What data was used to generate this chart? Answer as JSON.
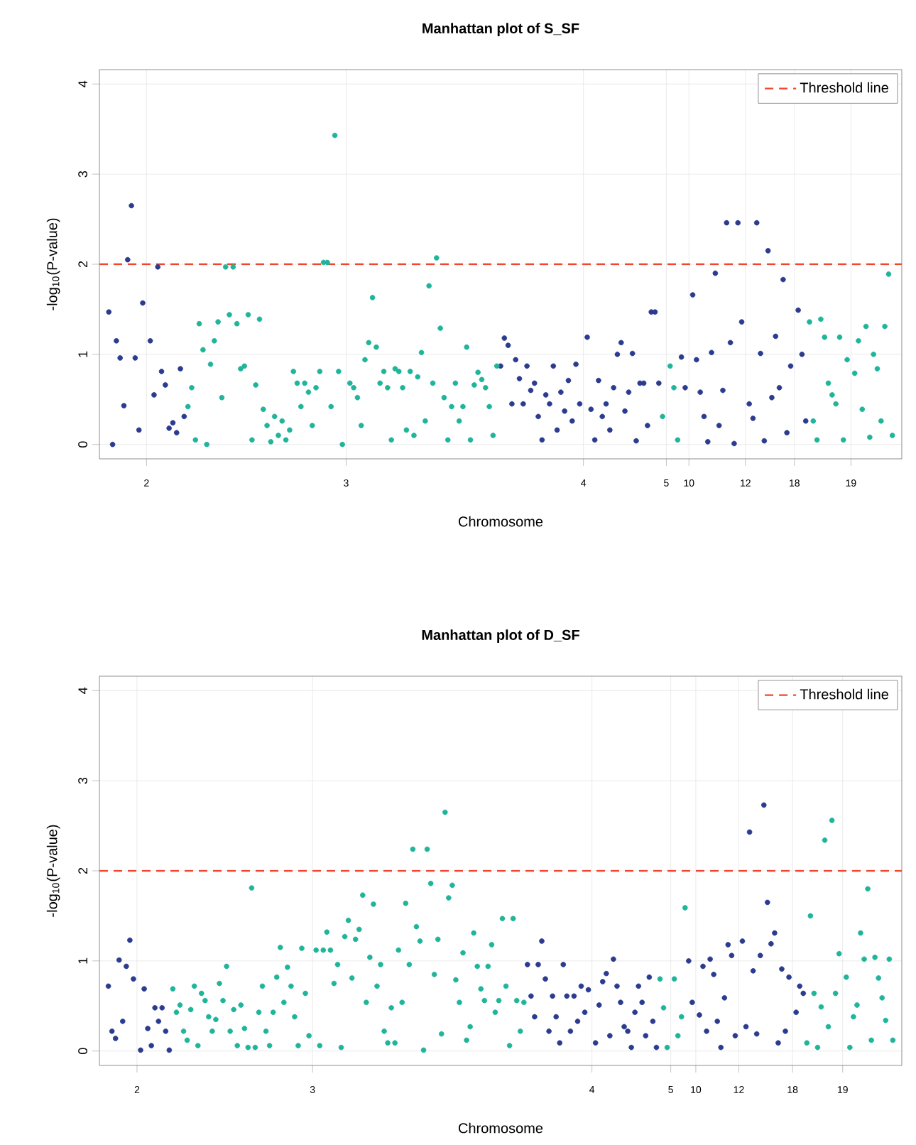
{
  "chart_data": [
    {
      "type": "scatter",
      "title": "Manhattan plot of S_SF",
      "xlabel": "Chromosome",
      "ylabel": "-log$_{10}$(P-value)",
      "ylim": [
        -0.16,
        4.16
      ],
      "yticks": [
        0,
        1,
        2,
        3,
        4
      ],
      "grid": true,
      "marker": "circle",
      "legend": "top right",
      "categories": [
        null,
        null,
        null,
        null,
        null,
        null,
        null,
        null,
        null,
        null,
        "2",
        null,
        null,
        null,
        null,
        null,
        null,
        null,
        null,
        null,
        null,
        null,
        null,
        null,
        null,
        null,
        null,
        null,
        null,
        null,
        null,
        null,
        null,
        null,
        null,
        null,
        null,
        null,
        null,
        null,
        null,
        null,
        null,
        null,
        null,
        null,
        null,
        null,
        null,
        null,
        null,
        null,
        null,
        null,
        null,
        null,
        null,
        null,
        null,
        null,
        null,
        null,
        null,
        "3",
        null,
        null,
        null,
        null,
        null,
        null,
        null,
        null,
        null,
        null,
        null,
        null,
        null,
        null,
        null,
        null,
        null,
        null,
        null,
        null,
        null,
        null,
        null,
        null,
        null,
        null,
        null,
        null,
        null,
        null,
        null,
        null,
        null,
        null,
        null,
        null,
        null,
        null,
        null,
        null,
        null,
        null,
        null,
        null,
        null,
        null,
        null,
        null,
        null,
        null,
        null,
        null,
        null,
        null,
        null,
        null,
        null,
        null,
        null,
        null,
        null,
        null,
        "4",
        null,
        null,
        null,
        null,
        null,
        null,
        null,
        null,
        null,
        null,
        null,
        null,
        null,
        null,
        null,
        null,
        null,
        null,
        null,
        null,
        null,
        "5",
        null,
        null,
        null,
        null,
        null,
        "10",
        null,
        null,
        null,
        null,
        null,
        null,
        null,
        null,
        null,
        null,
        null,
        null,
        null,
        null,
        "12",
        null,
        null,
        null,
        null,
        null,
        null,
        null,
        null,
        null,
        null,
        null,
        null,
        "18",
        null,
        null,
        null,
        null,
        null,
        null,
        null,
        null,
        null,
        null,
        null,
        null,
        null,
        null,
        "19",
        null,
        null,
        null,
        null,
        null,
        null,
        null,
        null,
        null,
        null,
        null
      ],
      "ref_lines": [
        {
          "axis": "y",
          "value": 2,
          "label": "Threshold line",
          "color": "#f2452d",
          "line_style": "dashed"
        }
      ],
      "series": [
        {
          "values": [
            1.47,
            0,
            1.15,
            0.96,
            0.43,
            2.05,
            2.65,
            0.96,
            0.16,
            1.57,
            null,
            1.15,
            0.55,
            1.97,
            0.81,
            0.66,
            0.18,
            0.24,
            0.13,
            0.84,
            0.31,
            0.42,
            0.63,
            0.05,
            1.34,
            1.05,
            0.0,
            0.89,
            1.15,
            1.36,
            0.52,
            1.97,
            1.44,
            1.97,
            1.34,
            0.84,
            0.87,
            1.44,
            0.05,
            0.66,
            1.39,
            0.39,
            0.21,
            0.03,
            0.31,
            0.1,
            0.26,
            0.05,
            0.16,
            0.81,
            0.68,
            0.42,
            0.68,
            0.58,
            0.21,
            0.63,
            0.81,
            2.02,
            2.02,
            0.42,
            3.43,
            0.81,
            0.0,
            null,
            0.68,
            0.63,
            0.52,
            0.21,
            0.94,
            1.13,
            1.63,
            1.08,
            0.68,
            0.81,
            0.63,
            0.05,
            0.84,
            0.81,
            0.63,
            0.16,
            0.81,
            0.1,
            0.75,
            1.02,
            0.26,
            1.76,
            0.68,
            2.07,
            1.29,
            0.52,
            0.05,
            0.42,
            0.68,
            0.26,
            0.42,
            1.08,
            0.05,
            0.66,
            0.8,
            0.72,
            0.63,
            0.42,
            0.1,
            0.87,
            0.87,
            1.18,
            1.1,
            0.45,
            0.94,
            0.73,
            0.45,
            0.87,
            0.6,
            0.68,
            0.31,
            0.05,
            0.55,
            0.45,
            0.87,
            0.16,
            0.58,
            0.37,
            0.71,
            0.26,
            0.89,
            0.45,
            null,
            1.19,
            0.39,
            0.05,
            0.71,
            0.31,
            0.45,
            0.16,
            0.63,
            1.0,
            1.13,
            0.37,
            0.58,
            1.01,
            0.04,
            0.68,
            0.68,
            0.21,
            1.47,
            1.47,
            0.68,
            0.31,
            null,
            0.87,
            0.63,
            0.05,
            0.97,
            0.63,
            null,
            1.66,
            0.94,
            0.58,
            0.31,
            0.03,
            1.02,
            1.9,
            0.21,
            0.6,
            2.46,
            1.13,
            0.01,
            2.46,
            1.36,
            null,
            0.45,
            0.29,
            2.46,
            1.01,
            0.04,
            2.15,
            0.52,
            1.2,
            0.63,
            1.83,
            0.13,
            0.87,
            null,
            1.49,
            1.0,
            0.26,
            1.36,
            0.26,
            0.05,
            1.39,
            1.19,
            0.68,
            0.55,
            0.45,
            1.19,
            0.05,
            0.94,
            null,
            0.79,
            1.15,
            0.39,
            1.31,
            0.08,
            1.0,
            0.84,
            0.26,
            1.31,
            1.89,
            0.1
          ],
          "colors": [
            "#2b3b8f",
            "#2b3b8f",
            "#2b3b8f",
            "#2b3b8f",
            "#2b3b8f",
            "#2b3b8f",
            "#2b3b8f",
            "#2b3b8f",
            "#2b3b8f",
            "#2b3b8f",
            null,
            "#2b3b8f",
            "#2b3b8f",
            "#2b3b8f",
            "#2b3b8f",
            "#2b3b8f",
            "#2b3b8f",
            "#2b3b8f",
            "#2b3b8f",
            "#2b3b8f",
            "#2b3b8f",
            "#1fb59a",
            "#1fb59a",
            "#1fb59a",
            "#1fb59a",
            "#1fb59a",
            "#1fb59a",
            "#1fb59a",
            "#1fb59a",
            "#1fb59a",
            "#1fb59a",
            "#1fb59a",
            "#1fb59a",
            "#1fb59a",
            "#1fb59a",
            "#1fb59a",
            "#1fb59a",
            "#1fb59a",
            "#1fb59a",
            "#1fb59a",
            "#1fb59a",
            "#1fb59a",
            "#1fb59a",
            "#1fb59a",
            "#1fb59a",
            "#1fb59a",
            "#1fb59a",
            "#1fb59a",
            "#1fb59a",
            "#1fb59a",
            "#1fb59a",
            "#1fb59a",
            "#1fb59a",
            "#1fb59a",
            "#1fb59a",
            "#1fb59a",
            "#1fb59a",
            "#1fb59a",
            "#1fb59a",
            "#1fb59a",
            "#1fb59a",
            "#1fb59a",
            "#1fb59a",
            null,
            "#1fb59a",
            "#1fb59a",
            "#1fb59a",
            "#1fb59a",
            "#1fb59a",
            "#1fb59a",
            "#1fb59a",
            "#1fb59a",
            "#1fb59a",
            "#1fb59a",
            "#1fb59a",
            "#1fb59a",
            "#1fb59a",
            "#1fb59a",
            "#1fb59a",
            "#1fb59a",
            "#1fb59a",
            "#1fb59a",
            "#1fb59a",
            "#1fb59a",
            "#1fb59a",
            "#1fb59a",
            "#1fb59a",
            "#1fb59a",
            "#1fb59a",
            "#1fb59a",
            "#1fb59a",
            "#1fb59a",
            "#1fb59a",
            "#1fb59a",
            "#1fb59a",
            "#1fb59a",
            "#1fb59a",
            "#1fb59a",
            "#1fb59a",
            "#1fb59a",
            "#1fb59a",
            "#1fb59a",
            "#1fb59a",
            "#1fb59a",
            "#2b3b8f",
            "#2b3b8f",
            "#2b3b8f",
            "#2b3b8f",
            "#2b3b8f",
            "#2b3b8f",
            "#2b3b8f",
            "#2b3b8f",
            "#2b3b8f",
            "#2b3b8f",
            "#2b3b8f",
            "#2b3b8f",
            "#2b3b8f",
            "#2b3b8f",
            "#2b3b8f",
            "#2b3b8f",
            "#2b3b8f",
            "#2b3b8f",
            "#2b3b8f",
            "#2b3b8f",
            "#2b3b8f",
            "#2b3b8f",
            null,
            "#2b3b8f",
            "#2b3b8f",
            "#2b3b8f",
            "#2b3b8f",
            "#2b3b8f",
            "#2b3b8f",
            "#2b3b8f",
            "#2b3b8f",
            "#2b3b8f",
            "#2b3b8f",
            "#2b3b8f",
            "#2b3b8f",
            "#2b3b8f",
            "#2b3b8f",
            "#2b3b8f",
            "#2b3b8f",
            "#2b3b8f",
            "#2b3b8f",
            "#2b3b8f",
            "#2b3b8f",
            "#1fb59a",
            null,
            "#1fb59a",
            "#1fb59a",
            "#1fb59a",
            "#2b3b8f",
            "#2b3b8f",
            null,
            "#2b3b8f",
            "#2b3b8f",
            "#2b3b8f",
            "#2b3b8f",
            "#2b3b8f",
            "#2b3b8f",
            "#2b3b8f",
            "#2b3b8f",
            "#2b3b8f",
            "#2b3b8f",
            "#2b3b8f",
            "#2b3b8f",
            "#2b3b8f",
            "#2b3b8f",
            null,
            "#2b3b8f",
            "#2b3b8f",
            "#2b3b8f",
            "#2b3b8f",
            "#2b3b8f",
            "#2b3b8f",
            "#2b3b8f",
            "#2b3b8f",
            "#2b3b8f",
            "#2b3b8f",
            "#2b3b8f",
            "#2b3b8f",
            null,
            "#2b3b8f",
            "#2b3b8f",
            "#2b3b8f",
            "#1fb59a",
            "#1fb59a",
            "#1fb59a",
            "#1fb59a",
            "#1fb59a",
            "#1fb59a",
            "#1fb59a",
            "#1fb59a",
            "#1fb59a",
            "#1fb59a",
            "#1fb59a",
            null,
            "#1fb59a",
            "#1fb59a",
            "#1fb59a",
            "#1fb59a",
            "#1fb59a",
            "#1fb59a",
            "#1fb59a",
            "#1fb59a",
            "#1fb59a",
            "#1fb59a",
            "#1fb59a"
          ]
        }
      ]
    },
    {
      "type": "scatter",
      "title": "Manhattan plot of D_SF",
      "xlabel": "Chromosome",
      "ylabel": "-log$_{10}$(P-value)",
      "ylim": [
        -0.16,
        4.16
      ],
      "yticks": [
        0,
        1,
        2,
        3,
        4
      ],
      "grid": true,
      "marker": "circle",
      "legend": "top right",
      "categories": [
        null,
        null,
        null,
        null,
        null,
        null,
        null,
        null,
        "2",
        null,
        null,
        null,
        null,
        null,
        null,
        null,
        null,
        null,
        null,
        null,
        null,
        null,
        null,
        null,
        null,
        null,
        null,
        null,
        null,
        null,
        null,
        null,
        null,
        null,
        null,
        null,
        null,
        null,
        null,
        null,
        null,
        null,
        null,
        null,
        null,
        null,
        null,
        null,
        null,
        null,
        null,
        null,
        null,
        null,
        null,
        null,
        null,
        "3",
        null,
        null,
        null,
        null,
        null,
        null,
        null,
        null,
        null,
        null,
        null,
        null,
        null,
        null,
        null,
        null,
        null,
        null,
        null,
        null,
        null,
        null,
        null,
        null,
        null,
        null,
        null,
        null,
        null,
        null,
        null,
        null,
        null,
        null,
        null,
        null,
        null,
        null,
        null,
        null,
        null,
        null,
        null,
        null,
        null,
        null,
        null,
        null,
        null,
        null,
        null,
        null,
        null,
        null,
        null,
        null,
        null,
        null,
        null,
        null,
        null,
        null,
        null,
        null,
        null,
        null,
        null,
        null,
        null,
        null,
        null,
        null,
        null,
        null,
        null,
        null,
        null,
        "4",
        null,
        null,
        null,
        null,
        null,
        null,
        null,
        null,
        null,
        null,
        null,
        null,
        null,
        null,
        null,
        null,
        null,
        null,
        null,
        null,
        null,
        "5",
        null,
        null,
        null,
        null,
        null,
        null,
        "10",
        null,
        null,
        null,
        null,
        null,
        null,
        null,
        null,
        null,
        null,
        null,
        "12",
        null,
        null,
        null,
        null,
        null,
        null,
        null,
        null,
        null,
        null,
        null,
        null,
        null,
        null,
        "18",
        null,
        null,
        null,
        null,
        null,
        null,
        null,
        null,
        null,
        null,
        null,
        null,
        null,
        "19",
        null,
        null,
        null,
        null,
        null,
        null,
        null,
        null,
        null,
        null,
        null,
        null,
        null,
        null
      ],
      "ref_lines": [
        {
          "axis": "y",
          "value": 2,
          "label": "Threshold line",
          "color": "#f2452d",
          "line_style": "dashed"
        }
      ],
      "series": [
        {
          "values": [
            0.72,
            0.22,
            0.14,
            1.01,
            0.33,
            0.94,
            1.23,
            0.8,
            null,
            0.01,
            0.69,
            0.25,
            0.06,
            0.48,
            0.33,
            0.48,
            0.22,
            0.01,
            0.69,
            0.43,
            0.51,
            0.22,
            0.12,
            0.46,
            0.72,
            0.06,
            0.64,
            0.56,
            0.38,
            0.22,
            0.35,
            0.75,
            0.56,
            0.94,
            0.22,
            0.46,
            0.06,
            0.51,
            0.25,
            0.04,
            1.81,
            0.04,
            0.43,
            0.72,
            0.22,
            0.06,
            0.43,
            0.82,
            1.15,
            0.54,
            0.93,
            0.72,
            0.38,
            0.06,
            1.14,
            0.64,
            0.17,
            null,
            1.12,
            0.06,
            1.12,
            1.32,
            1.12,
            0.75,
            0.96,
            0.04,
            1.27,
            1.45,
            0.81,
            1.24,
            1.35,
            1.73,
            0.54,
            1.04,
            1.63,
            0.72,
            0.96,
            0.22,
            0.09,
            0.48,
            0.09,
            1.12,
            0.54,
            1.64,
            0.96,
            2.24,
            1.38,
            1.22,
            0.01,
            2.24,
            1.86,
            0.85,
            1.24,
            0.19,
            2.65,
            1.7,
            1.84,
            0.79,
            0.54,
            1.09,
            0.12,
            0.27,
            1.31,
            0.94,
            0.69,
            0.56,
            0.94,
            1.18,
            0.43,
            0.56,
            1.47,
            0.72,
            0.06,
            1.47,
            0.56,
            0.22,
            0.54,
            0.96,
            0.61,
            0.38,
            0.96,
            1.22,
            0.8,
            0.22,
            0.61,
            0.38,
            0.09,
            0.96,
            0.61,
            0.22,
            0.61,
            0.33,
            0.72,
            0.43,
            0.68,
            null,
            0.09,
            0.51,
            0.77,
            0.86,
            0.17,
            1.02,
            0.72,
            0.54,
            0.27,
            0.22,
            0.04,
            0.43,
            0.72,
            0.54,
            0.17,
            0.82,
            0.33,
            0.04,
            0.8,
            0.48,
            0.04,
            null,
            0.8,
            0.17,
            0.38,
            1.59,
            1.0,
            0.54,
            null,
            0.4,
            0.94,
            0.22,
            1.02,
            0.85,
            0.33,
            0.04,
            0.59,
            1.18,
            1.06,
            0.17,
            null,
            1.22,
            0.27,
            2.43,
            0.89,
            0.19,
            1.06,
            2.73,
            1.65,
            1.19,
            1.31,
            0.09,
            0.91,
            0.22,
            0.82,
            null,
            0.43,
            0.72,
            0.64,
            0.09,
            1.5,
            0.64,
            0.04,
            0.49,
            2.34,
            0.27,
            2.56,
            0.64,
            1.08,
            null,
            0.82,
            0.04,
            0.38,
            0.51,
            1.31,
            1.02,
            1.8,
            0.12,
            1.04,
            0.81,
            0.59,
            0.34,
            1.02,
            0.12
          ],
          "colors": [
            "#2b3b8f",
            "#2b3b8f",
            "#2b3b8f",
            "#2b3b8f",
            "#2b3b8f",
            "#2b3b8f",
            "#2b3b8f",
            "#2b3b8f",
            null,
            "#2b3b8f",
            "#2b3b8f",
            "#2b3b8f",
            "#2b3b8f",
            "#2b3b8f",
            "#2b3b8f",
            "#2b3b8f",
            "#2b3b8f",
            "#2b3b8f",
            "#1fb59a",
            "#1fb59a",
            "#1fb59a",
            "#1fb59a",
            "#1fb59a",
            "#1fb59a",
            "#1fb59a",
            "#1fb59a",
            "#1fb59a",
            "#1fb59a",
            "#1fb59a",
            "#1fb59a",
            "#1fb59a",
            "#1fb59a",
            "#1fb59a",
            "#1fb59a",
            "#1fb59a",
            "#1fb59a",
            "#1fb59a",
            "#1fb59a",
            "#1fb59a",
            "#1fb59a",
            "#1fb59a",
            "#1fb59a",
            "#1fb59a",
            "#1fb59a",
            "#1fb59a",
            "#1fb59a",
            "#1fb59a",
            "#1fb59a",
            "#1fb59a",
            "#1fb59a",
            "#1fb59a",
            "#1fb59a",
            "#1fb59a",
            "#1fb59a",
            "#1fb59a",
            "#1fb59a",
            "#1fb59a",
            null,
            "#1fb59a",
            "#1fb59a",
            "#1fb59a",
            "#1fb59a",
            "#1fb59a",
            "#1fb59a",
            "#1fb59a",
            "#1fb59a",
            "#1fb59a",
            "#1fb59a",
            "#1fb59a",
            "#1fb59a",
            "#1fb59a",
            "#1fb59a",
            "#1fb59a",
            "#1fb59a",
            "#1fb59a",
            "#1fb59a",
            "#1fb59a",
            "#1fb59a",
            "#1fb59a",
            "#1fb59a",
            "#1fb59a",
            "#1fb59a",
            "#1fb59a",
            "#1fb59a",
            "#1fb59a",
            "#1fb59a",
            "#1fb59a",
            "#1fb59a",
            "#1fb59a",
            "#1fb59a",
            "#1fb59a",
            "#1fb59a",
            "#1fb59a",
            "#1fb59a",
            "#1fb59a",
            "#1fb59a",
            "#1fb59a",
            "#1fb59a",
            "#1fb59a",
            "#1fb59a",
            "#1fb59a",
            "#1fb59a",
            "#1fb59a",
            "#1fb59a",
            "#1fb59a",
            "#1fb59a",
            "#1fb59a",
            "#1fb59a",
            "#1fb59a",
            "#1fb59a",
            "#1fb59a",
            "#1fb59a",
            "#1fb59a",
            "#1fb59a",
            "#1fb59a",
            "#1fb59a",
            "#1fb59a",
            "#2b3b8f",
            "#2b3b8f",
            "#2b3b8f",
            "#2b3b8f",
            "#2b3b8f",
            "#2b3b8f",
            "#2b3b8f",
            "#2b3b8f",
            "#2b3b8f",
            "#2b3b8f",
            "#2b3b8f",
            "#2b3b8f",
            "#2b3b8f",
            "#2b3b8f",
            "#2b3b8f",
            "#2b3b8f",
            "#2b3b8f",
            "#2b3b8f",
            null,
            "#2b3b8f",
            "#2b3b8f",
            "#2b3b8f",
            "#2b3b8f",
            "#2b3b8f",
            "#2b3b8f",
            "#2b3b8f",
            "#2b3b8f",
            "#2b3b8f",
            "#2b3b8f",
            "#2b3b8f",
            "#2b3b8f",
            "#2b3b8f",
            "#2b3b8f",
            "#2b3b8f",
            "#2b3b8f",
            "#2b3b8f",
            "#2b3b8f",
            "#1fb59a",
            "#1fb59a",
            "#1fb59a",
            null,
            "#1fb59a",
            "#1fb59a",
            "#1fb59a",
            "#1fb59a",
            "#2b3b8f",
            "#2b3b8f",
            null,
            "#2b3b8f",
            "#2b3b8f",
            "#2b3b8f",
            "#2b3b8f",
            "#2b3b8f",
            "#2b3b8f",
            "#2b3b8f",
            "#2b3b8f",
            "#2b3b8f",
            "#2b3b8f",
            "#2b3b8f",
            null,
            "#2b3b8f",
            "#2b3b8f",
            "#2b3b8f",
            "#2b3b8f",
            "#2b3b8f",
            "#2b3b8f",
            "#2b3b8f",
            "#2b3b8f",
            "#2b3b8f",
            "#2b3b8f",
            "#2b3b8f",
            "#2b3b8f",
            "#2b3b8f",
            "#2b3b8f",
            null,
            "#2b3b8f",
            "#2b3b8f",
            "#2b3b8f",
            "#1fb59a",
            "#1fb59a",
            "#1fb59a",
            "#1fb59a",
            "#1fb59a",
            "#1fb59a",
            "#1fb59a",
            "#1fb59a",
            "#1fb59a",
            "#1fb59a",
            null,
            "#1fb59a",
            "#1fb59a",
            "#1fb59a",
            "#1fb59a",
            "#1fb59a",
            "#1fb59a",
            "#1fb59a",
            "#1fb59a",
            "#1fb59a",
            "#1fb59a",
            "#1fb59a",
            "#1fb59a",
            "#1fb59a",
            "#1fb59a"
          ]
        }
      ]
    }
  ]
}
